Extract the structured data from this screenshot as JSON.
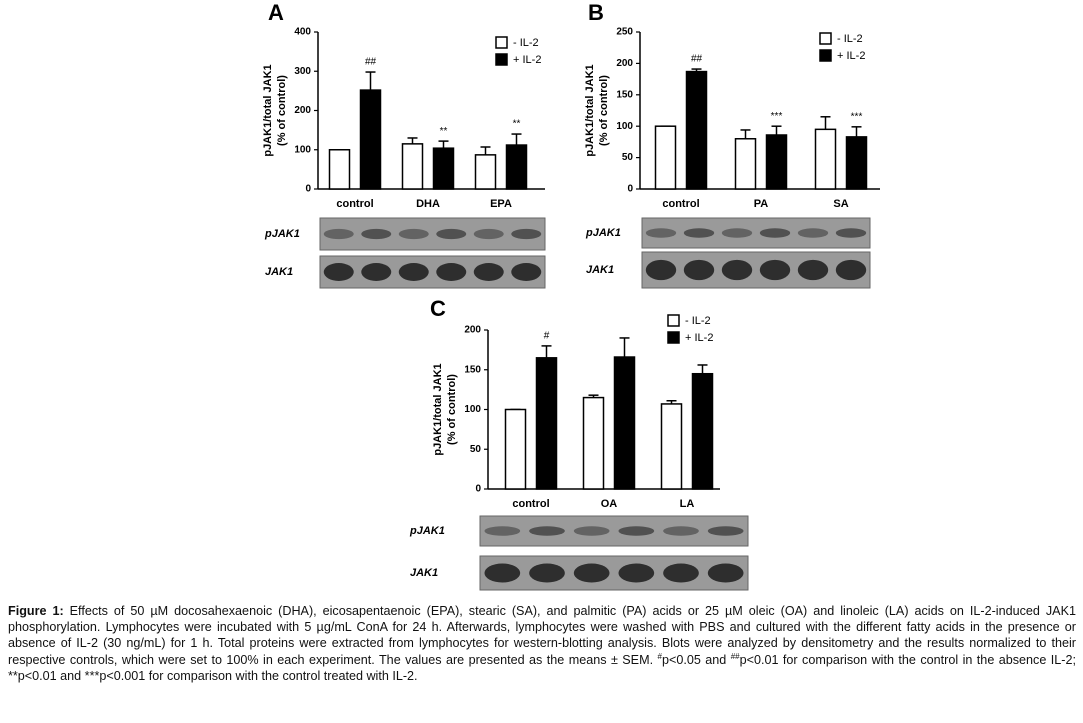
{
  "chart_data": [
    {
      "type": "bar",
      "panel": "A",
      "ylabel": [
        "pJAK1/total JAK1",
        "(% of control)"
      ],
      "categories": [
        "control",
        "DHA",
        "EPA"
      ],
      "series": [
        {
          "name": "- IL-2",
          "color": "#ffffff",
          "values": [
            100,
            115,
            87
          ],
          "errors": [
            0,
            15,
            20
          ]
        },
        {
          "name": "+ IL-2",
          "color": "#000000",
          "values": [
            252,
            104,
            112
          ],
          "errors": [
            46,
            18,
            28
          ]
        }
      ],
      "annotations": [
        "##",
        "**",
        "**"
      ],
      "ylim": [
        0,
        400
      ],
      "yticks": [
        0,
        100,
        200,
        300,
        400
      ],
      "legend": "top-right",
      "blots": [
        "pJAK1",
        "JAK1"
      ]
    },
    {
      "type": "bar",
      "panel": "B",
      "ylabel": [
        "pJAK1/total JAK1",
        "(% of control)"
      ],
      "categories": [
        "control",
        "PA",
        "SA"
      ],
      "series": [
        {
          "name": "- IL-2",
          "color": "#ffffff",
          "values": [
            100,
            80,
            95
          ],
          "errors": [
            0,
            14,
            20
          ]
        },
        {
          "name": "+ IL-2",
          "color": "#000000",
          "values": [
            187,
            86,
            83
          ],
          "errors": [
            4,
            14,
            16
          ]
        }
      ],
      "annotations": [
        "##",
        "***",
        "***"
      ],
      "ylim": [
        0,
        250
      ],
      "yticks": [
        0,
        50,
        100,
        150,
        200,
        250
      ],
      "legend": "top-right",
      "blots": [
        "pJAK1",
        "JAK1"
      ]
    },
    {
      "type": "bar",
      "panel": "C",
      "ylabel": [
        "pJAK1/total JAK1",
        "(% of control)"
      ],
      "categories": [
        "control",
        "OA",
        "LA"
      ],
      "series": [
        {
          "name": "- IL-2",
          "color": "#ffffff",
          "values": [
            100,
            115,
            107
          ],
          "errors": [
            0,
            3,
            4
          ]
        },
        {
          "name": "+ IL-2",
          "color": "#000000",
          "values": [
            165,
            166,
            145
          ],
          "errors": [
            15,
            24,
            11
          ]
        }
      ],
      "annotations": [
        "#",
        null,
        null
      ],
      "ylim": [
        0,
        200
      ],
      "yticks": [
        0,
        50,
        100,
        150,
        200
      ],
      "legend": "top-right",
      "blots": [
        "pJAK1",
        "JAK1"
      ]
    }
  ],
  "caption": {
    "label": "Figure 1:",
    "parts": [
      {
        "text": " Effects of 50 µM docosahexaenoic (DHA), eicosapentaenoic (EPA), stearic (SA), and palmitic (PA) acids or 25 µM oleic (OA) and linoleic (LA) acids on IL-2-induced JAK1 phosphorylation. Lymphocytes were incubated with 5 µg/mL ConA for 24 h. Afterwards, lymphocytes were washed with PBS and cultured with the different fatty acids in the presence or absence of IL-2 (30 ng/mL) for 1 h. Total proteins were extracted from lymphocytes for western-blotting analysis. Blots were analyzed by densitometry and the results normalized to their respective controls, which were set to 100% in each experiment. The values are presented as the means ± SEM. "
      },
      {
        "sup": "#"
      },
      {
        "text": "p<0.05 and "
      },
      {
        "sup": "##"
      },
      {
        "text": "p<0.01 for comparison with the control in the absence IL-2; **p<0.01 and ***p<0.001 for comparison with the control treated with IL-2."
      }
    ]
  }
}
